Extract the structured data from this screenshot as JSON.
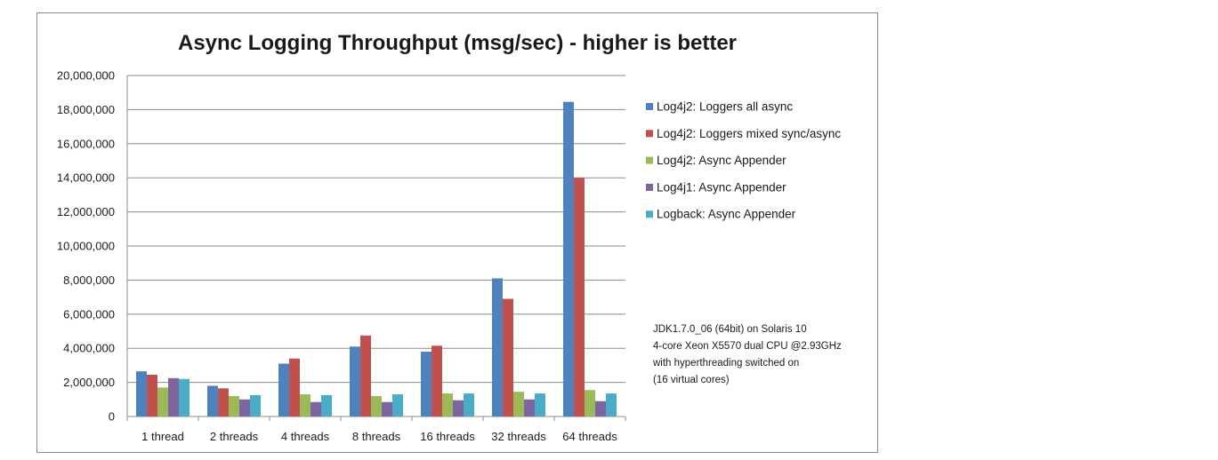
{
  "chart_data": {
    "type": "bar",
    "title": "Async Logging Throughput (msg/sec) - higher is better",
    "xlabel": "",
    "ylabel": "",
    "ylim": [
      0,
      20000000
    ],
    "yticks": [
      0,
      2000000,
      4000000,
      6000000,
      8000000,
      10000000,
      12000000,
      14000000,
      16000000,
      18000000,
      20000000
    ],
    "ytick_labels": [
      "0",
      "2,000,000",
      "4,000,000",
      "6,000,000",
      "8,000,000",
      "10,000,000",
      "12,000,000",
      "14,000,000",
      "16,000,000",
      "18,000,000",
      "20,000,000"
    ],
    "grid": "horizontal",
    "legend_position": "right",
    "categories": [
      "1 thread",
      "2 threads",
      "4 threads",
      "8 threads",
      "16 threads",
      "32 threads",
      "64 threads"
    ],
    "series": [
      {
        "name": "Log4j2: Loggers all async",
        "color": "#4f81bd",
        "values": [
          2650000,
          1800000,
          3100000,
          4100000,
          3800000,
          8100000,
          18450000
        ]
      },
      {
        "name": "Log4j2: Loggers mixed sync/async",
        "color": "#c0504d",
        "values": [
          2450000,
          1650000,
          3400000,
          4750000,
          4150000,
          6900000,
          14000000
        ]
      },
      {
        "name": "Log4j2: Async Appender",
        "color": "#9bbb59",
        "values": [
          1700000,
          1200000,
          1300000,
          1200000,
          1350000,
          1450000,
          1550000
        ]
      },
      {
        "name": "Log4j1: Async Appender",
        "color": "#8064a2",
        "values": [
          2250000,
          1000000,
          850000,
          850000,
          950000,
          1000000,
          900000
        ]
      },
      {
        "name": "Logback: Async Appender",
        "color": "#4bacc6",
        "values": [
          2200000,
          1250000,
          1250000,
          1300000,
          1350000,
          1350000,
          1350000
        ]
      }
    ],
    "annotation": [
      "JDK1.7.0_06 (64bit) on Solaris 10",
      "4-core Xeon X5570 dual CPU @2.93GHz",
      "with hyperthreading switched on",
      "(16 virtual cores)"
    ]
  }
}
